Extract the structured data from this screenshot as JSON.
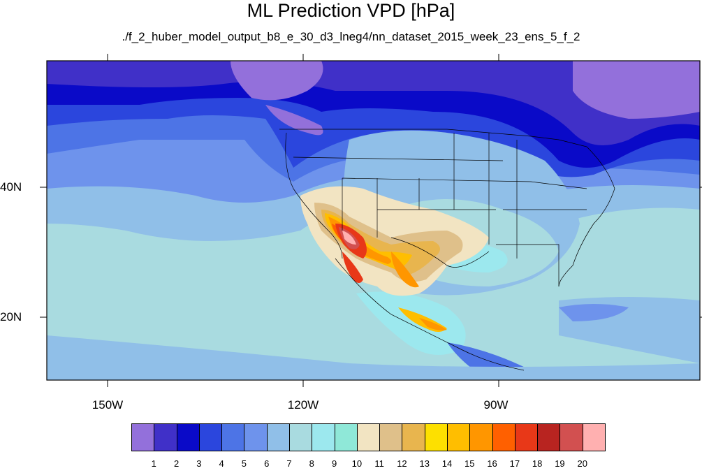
{
  "title": "ML Prediction VPD [hPa]",
  "subtitle": "./f_2_huber_model_output_b8_e_30_d3_lneg4/nn_dataset_2015_week_23_ens_5_f_2",
  "axes": {
    "lon_labels": [
      "150W",
      "120W",
      "90W"
    ],
    "lat_labels": [
      "40N",
      "20N"
    ]
  },
  "colorbar": {
    "labels": [
      "1",
      "2",
      "3",
      "4",
      "5",
      "6",
      "7",
      "8",
      "9",
      "10",
      "11",
      "12",
      "13",
      "14",
      "15",
      "16",
      "17",
      "18",
      "19",
      "20"
    ],
    "colors": [
      "#9370db",
      "#4030c8",
      "#0a0ac8",
      "#2b46dd",
      "#4d74e6",
      "#6e93ec",
      "#90bfe8",
      "#a9dbe0",
      "#9ce8ee",
      "#8fe8d8",
      "#f2e4c2",
      "#dfc08a",
      "#e8b54e",
      "#fde000",
      "#ffbe00",
      "#ff9600",
      "#ff6000",
      "#e83818",
      "#b82420",
      "#d25050",
      "#ffb0b0"
    ]
  }
}
